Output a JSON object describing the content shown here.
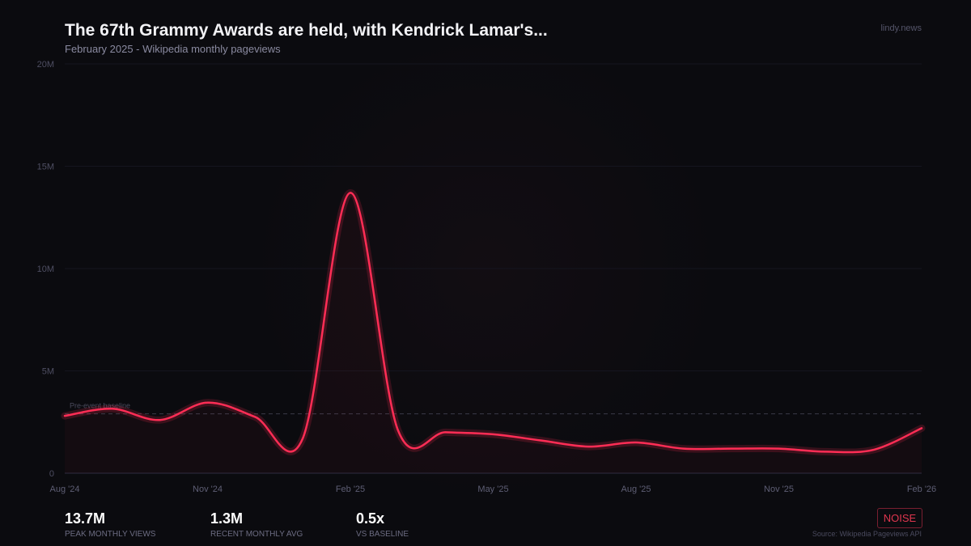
{
  "header": {
    "title": "The 67th Grammy Awards are held, with Kendrick Lamar's...",
    "subtitle": "February 2025  -  Wikipedia monthly pageviews",
    "brand": "lindy.news"
  },
  "chart_data": {
    "type": "line",
    "x": [
      "Aug '24",
      "Sep '24",
      "Oct '24",
      "Nov '24",
      "Dec '24",
      "Jan '25",
      "Feb '25",
      "Mar '25",
      "Apr '25",
      "May '25",
      "Jun '25",
      "Jul '25",
      "Aug '25",
      "Sep '25",
      "Oct '25",
      "Nov '25",
      "Dec '25",
      "Jan '26",
      "Feb '26"
    ],
    "values": [
      2.8,
      3.15,
      2.6,
      3.45,
      2.75,
      1.7,
      13.7,
      2.1,
      2.0,
      1.9,
      1.6,
      1.3,
      1.5,
      1.2,
      1.2,
      1.2,
      1.05,
      1.15,
      2.2
    ],
    "unit": "M",
    "xticks": [
      "Aug '24",
      "Nov '24",
      "Feb '25",
      "May '25",
      "Aug '25",
      "Nov '25",
      "Feb '26"
    ],
    "yticks": [
      {
        "value": 0,
        "label": "0"
      },
      {
        "value": 5,
        "label": "5M"
      },
      {
        "value": 10,
        "label": "10M"
      },
      {
        "value": 15,
        "label": "15M"
      },
      {
        "value": 20,
        "label": "20M"
      }
    ],
    "ylim": [
      0,
      20
    ],
    "grid": true,
    "baseline": {
      "value": 2.9,
      "label": "Pre-event baseline"
    },
    "line_color": "#ff2d55"
  },
  "stats": [
    {
      "value": "13.7M",
      "label": "PEAK MONTHLY VIEWS"
    },
    {
      "value": "1.3M",
      "label": "RECENT MONTHLY AVG"
    },
    {
      "value": "0.5x",
      "label": "VS BASELINE"
    }
  ],
  "badge": "NOISE",
  "source": "Source: Wikipedia Pageviews API"
}
